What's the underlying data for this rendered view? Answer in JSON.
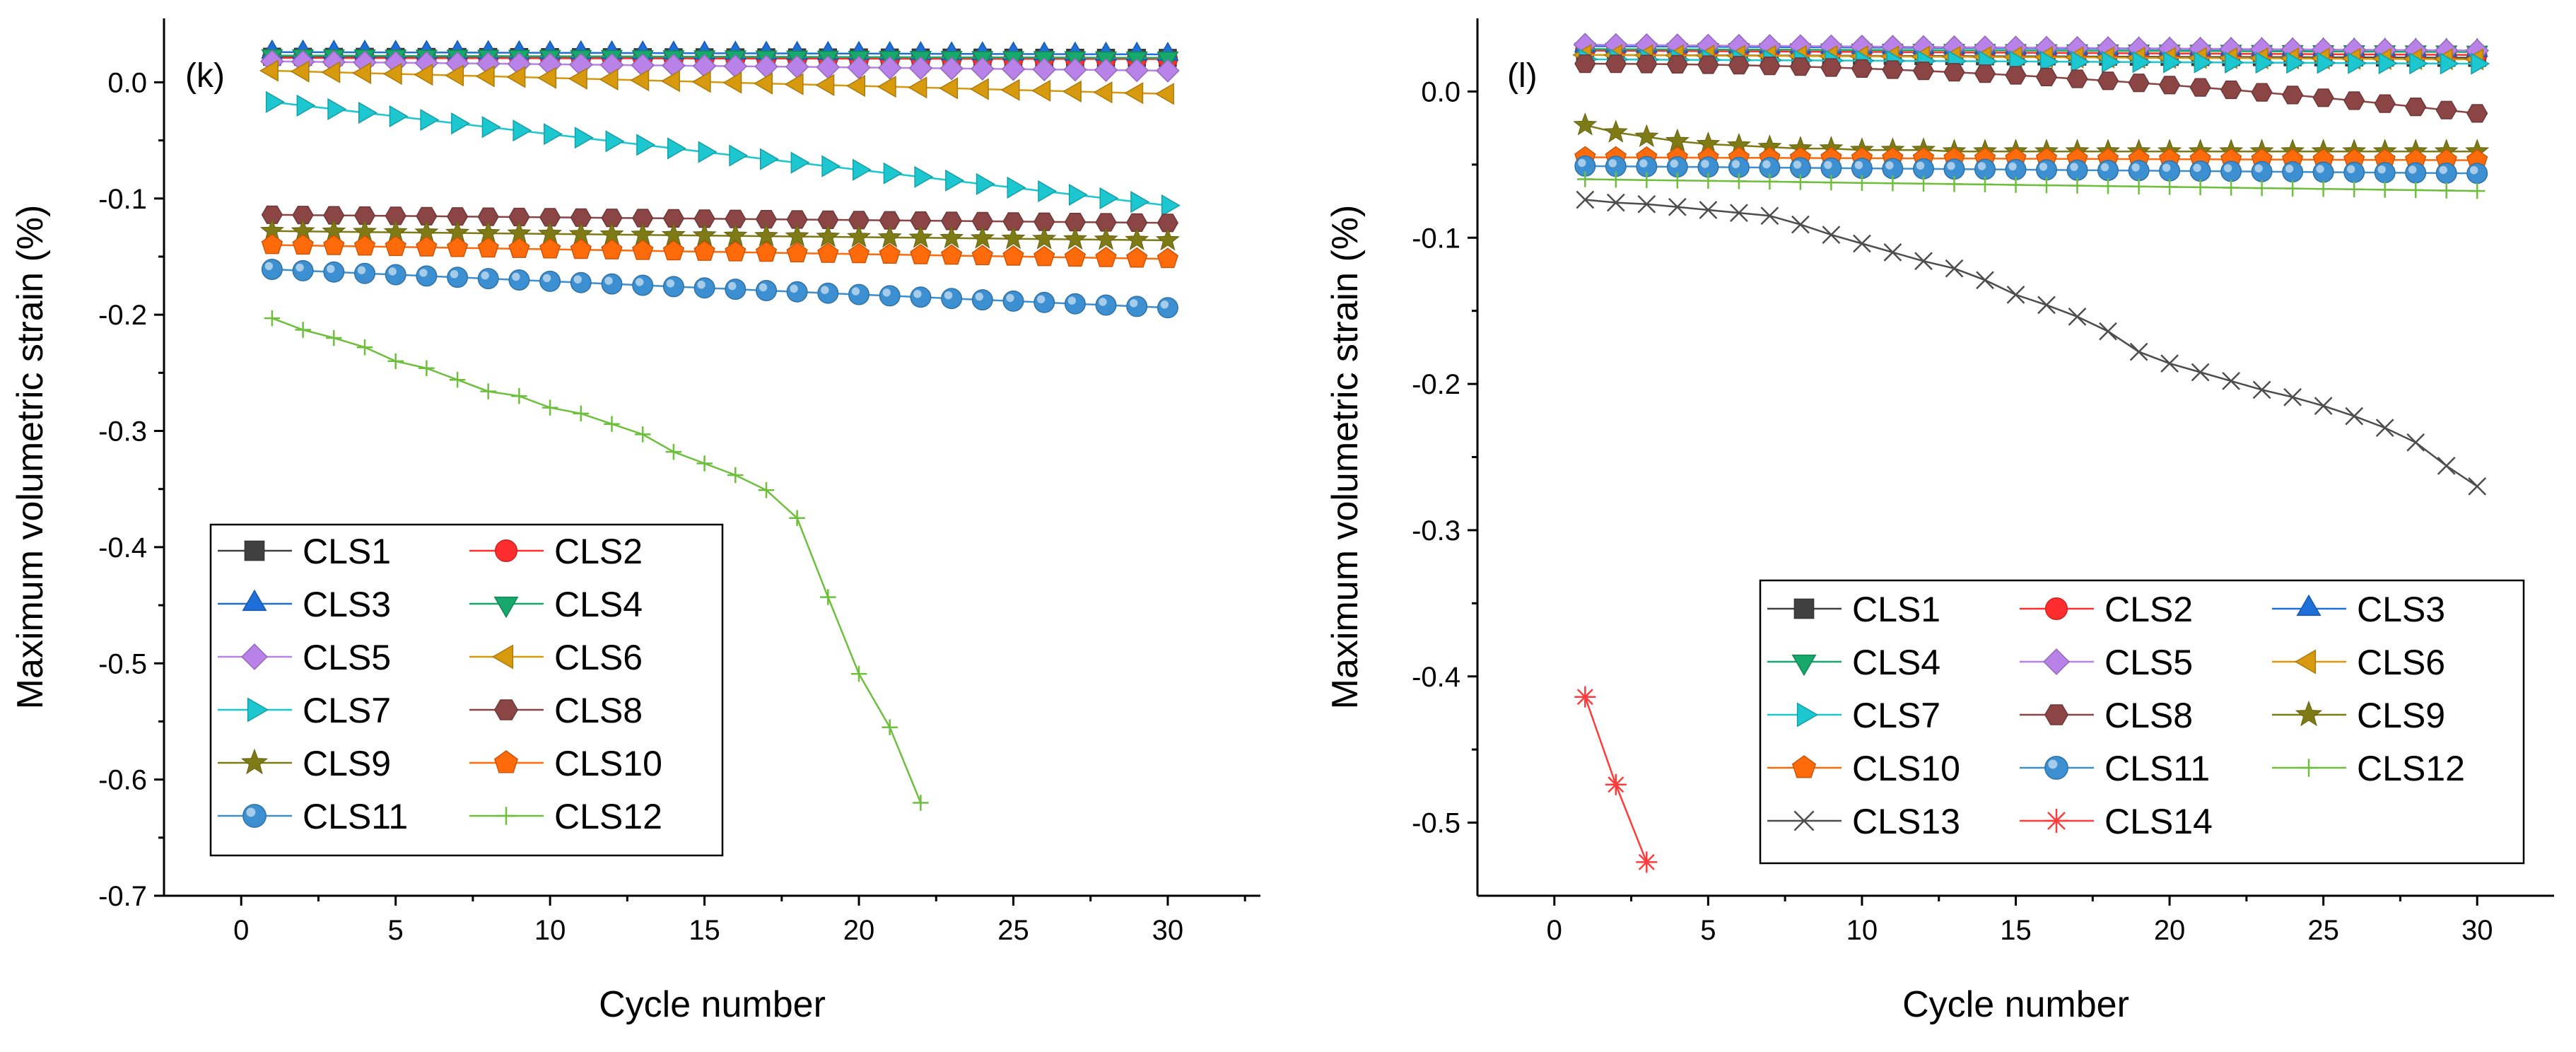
{
  "chart_data": [
    {
      "type": "line",
      "panel_label": "(k)",
      "xlabel": "Cycle number",
      "ylabel": "Maximum volumetric strain (%)",
      "xlim": [
        -2.5,
        33
      ],
      "ylim": [
        -0.7,
        0.055
      ],
      "xticks": [
        0,
        5,
        10,
        15,
        20,
        25,
        30
      ],
      "xtick_labels": [
        "0",
        "5",
        "10",
        "15",
        "20",
        "25",
        "30"
      ],
      "yticks": [
        0.0,
        -0.1,
        -0.2,
        -0.3,
        -0.4,
        -0.5,
        -0.6,
        -0.7
      ],
      "ytick_labels": [
        "0.0",
        "-0.1",
        "-0.2",
        "-0.3",
        "-0.4",
        "-0.5",
        "-0.6",
        "-0.7"
      ],
      "legend_columns": 2,
      "series": [
        {
          "name": "CLS1",
          "color": "#404040",
          "marker": "square",
          "start": 0.022,
          "end": 0.021
        },
        {
          "name": "CLS2",
          "color": "#FF2D2D",
          "marker": "circle",
          "start": 0.021,
          "end": 0.02
        },
        {
          "name": "CLS3",
          "color": "#1F6FD9",
          "marker": "triangle-up",
          "start": 0.026,
          "end": 0.024
        },
        {
          "name": "CLS4",
          "color": "#17A86B",
          "marker": "triangle-down",
          "start": 0.023,
          "end": 0.021
        },
        {
          "name": "CLS5",
          "color": "#B982E8",
          "marker": "diamond",
          "start": 0.018,
          "end": 0.01
        },
        {
          "name": "CLS6",
          "color": "#D79A0E",
          "marker": "triangle-left",
          "start": 0.01,
          "end": -0.01
        },
        {
          "name": "CLS7",
          "color": "#1CC7CF",
          "marker": "triangle-right",
          "start": -0.017,
          "end": -0.106
        },
        {
          "name": "CLS8",
          "color": "#8B4545",
          "marker": "hexagon",
          "start": -0.114,
          "end": -0.121
        },
        {
          "name": "CLS9",
          "color": "#7E7A16",
          "marker": "star",
          "start": -0.128,
          "end": -0.136
        },
        {
          "name": "CLS10",
          "color": "#FF6A0A",
          "marker": "pentagon",
          "start": -0.14,
          "end": -0.152
        },
        {
          "name": "CLS11",
          "color": "#3C8FD0",
          "marker": "sphere",
          "start": -0.161,
          "end": -0.194
        },
        {
          "name": "CLS12",
          "color": "#6DBF3C",
          "marker": "plus",
          "x": [
            1,
            2,
            3,
            4,
            5,
            6,
            7,
            8,
            9,
            10,
            11,
            12,
            13,
            14,
            15,
            16,
            17,
            18,
            19,
            20,
            21,
            22
          ],
          "y": [
            -0.203,
            -0.213,
            -0.22,
            -0.228,
            -0.24,
            -0.246,
            -0.256,
            -0.266,
            -0.27,
            -0.28,
            -0.285,
            -0.294,
            -0.303,
            -0.318,
            -0.328,
            -0.338,
            -0.351,
            -0.375,
            -0.443,
            -0.509,
            -0.555,
            -0.62
          ]
        }
      ]
    },
    {
      "type": "line",
      "panel_label": "(l)",
      "xlabel": "Cycle number",
      "ylabel": "Maximum volumetric strain (%)",
      "xlim": [
        -2.5,
        32.5
      ],
      "ylim": [
        -0.55,
        0.05
      ],
      "xticks": [
        0,
        5,
        10,
        15,
        20,
        25,
        30
      ],
      "xtick_labels": [
        "0",
        "5",
        "10",
        "15",
        "20",
        "25",
        "30"
      ],
      "yticks": [
        0.0,
        -0.1,
        -0.2,
        -0.3,
        -0.4,
        -0.5
      ],
      "ytick_labels": [
        "0.0",
        "-0.1",
        "-0.2",
        "-0.3",
        "-0.4",
        "-0.5"
      ],
      "legend_columns": 3,
      "series": [
        {
          "name": "CLS1",
          "color": "#404040",
          "marker": "square",
          "start": 0.025,
          "end": 0.023
        },
        {
          "name": "CLS2",
          "color": "#FF2D2D",
          "marker": "circle",
          "start": 0.028,
          "end": 0.025
        },
        {
          "name": "CLS3",
          "color": "#1F6FD9",
          "marker": "triangle-up",
          "start": 0.031,
          "end": 0.028
        },
        {
          "name": "CLS4",
          "color": "#17A86B",
          "marker": "triangle-down",
          "start": 0.029,
          "end": 0.027
        },
        {
          "name": "CLS5",
          "color": "#B982E8",
          "marker": "diamond",
          "start": 0.032,
          "end": 0.028
        },
        {
          "name": "CLS6",
          "color": "#D79A0E",
          "marker": "triangle-left",
          "start": 0.025,
          "end": 0.022
        },
        {
          "name": "CLS7",
          "color": "#1CC7CF",
          "marker": "triangle-right",
          "start": 0.022,
          "end": 0.019
        },
        {
          "name": "CLS8",
          "color": "#8B4545",
          "marker": "hexagon",
          "start": 0.019,
          "end": -0.015,
          "curve": 2.0
        },
        {
          "name": "CLS9",
          "color": "#7E7A16",
          "marker": "star",
          "x": [
            1,
            2,
            3,
            4,
            5,
            6,
            7,
            8,
            9,
            10,
            11,
            12,
            13,
            14,
            15,
            16,
            17,
            18,
            19,
            20,
            21,
            22,
            23,
            24,
            25,
            26,
            27,
            28,
            29,
            30
          ],
          "y": [
            -0.023,
            -0.028,
            -0.031,
            -0.034,
            -0.036,
            -0.037,
            -0.038,
            -0.039,
            -0.039,
            -0.04,
            -0.04,
            -0.04,
            -0.041,
            -0.041,
            -0.041,
            -0.041,
            -0.041,
            -0.041,
            -0.041,
            -0.041,
            -0.041,
            -0.041,
            -0.041,
            -0.041,
            -0.041,
            -0.041,
            -0.041,
            -0.041,
            -0.041,
            -0.041
          ]
        },
        {
          "name": "CLS10",
          "color": "#FF6A0A",
          "marker": "pentagon",
          "start": -0.045,
          "end": -0.047
        },
        {
          "name": "CLS11",
          "color": "#3C8FD0",
          "marker": "sphere",
          "start": -0.051,
          "end": -0.056
        },
        {
          "name": "CLS12",
          "color": "#6DBF3C",
          "marker": "plus",
          "start": -0.06,
          "end": -0.068
        },
        {
          "name": "CLS13",
          "color": "#4D4D4D",
          "marker": "x",
          "x": [
            1,
            2,
            3,
            4,
            5,
            6,
            7,
            8,
            9,
            10,
            11,
            12,
            13,
            14,
            15,
            16,
            17,
            18,
            19,
            20,
            21,
            22,
            23,
            24,
            25,
            26,
            27,
            28,
            29,
            30
          ],
          "y": [
            -0.074,
            -0.076,
            -0.077,
            -0.079,
            -0.081,
            -0.083,
            -0.085,
            -0.091,
            -0.098,
            -0.104,
            -0.11,
            -0.116,
            -0.121,
            -0.129,
            -0.139,
            -0.146,
            -0.154,
            -0.164,
            -0.178,
            -0.186,
            -0.192,
            -0.198,
            -0.204,
            -0.209,
            -0.215,
            -0.222,
            -0.23,
            -0.24,
            -0.256,
            -0.27
          ]
        },
        {
          "name": "CLS14",
          "color": "#FF3B3B",
          "marker": "asterisk",
          "x": [
            1,
            2,
            3
          ],
          "y": [
            -0.414,
            -0.474,
            -0.527
          ]
        }
      ]
    }
  ]
}
